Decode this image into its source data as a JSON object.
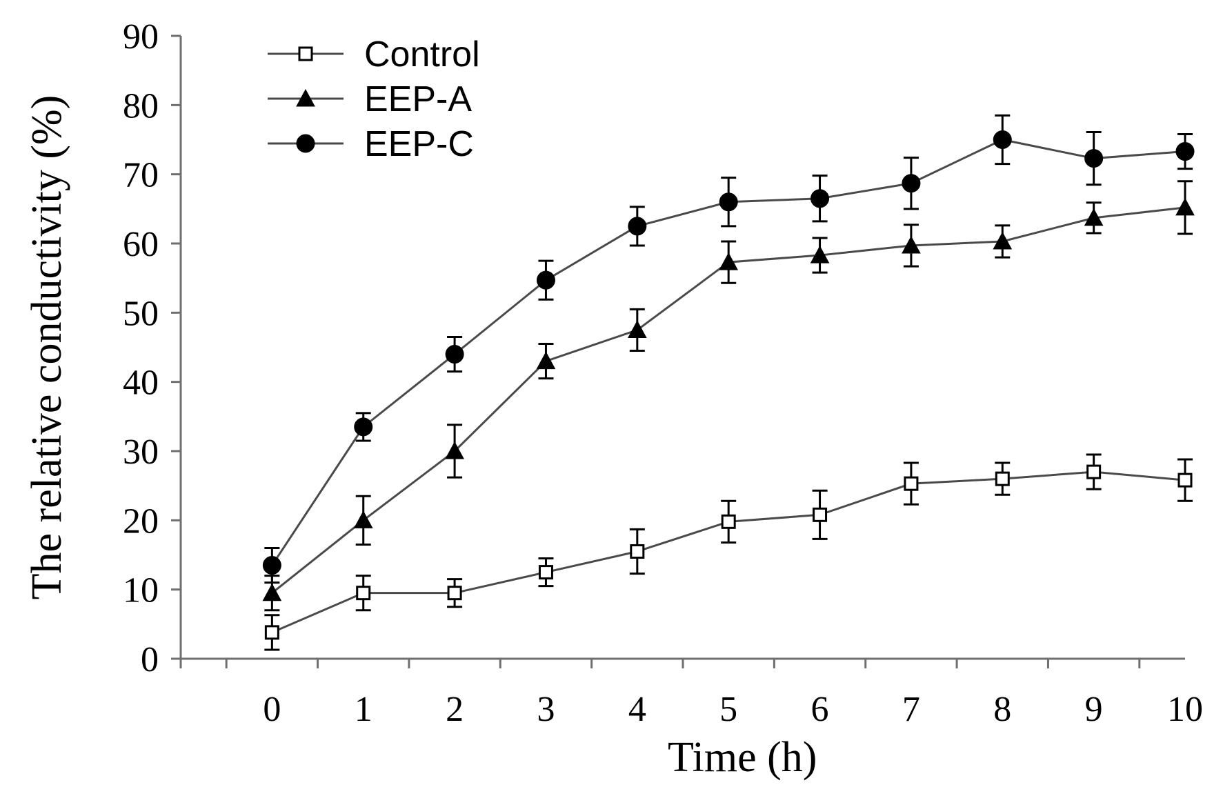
{
  "chart_data": {
    "type": "line",
    "title": "",
    "xlabel": "Time (h)",
    "ylabel": "The relative conductivity (%)",
    "x": [
      0,
      1,
      2,
      3,
      4,
      5,
      6,
      7,
      8,
      9,
      10
    ],
    "xticks": [
      "0",
      "1",
      "2",
      "3",
      "4",
      "5",
      "6",
      "7",
      "8",
      "9",
      "10"
    ],
    "yticks": [
      "0",
      "10",
      "20",
      "30",
      "40",
      "50",
      "60",
      "70",
      "80",
      "90"
    ],
    "xlim": [
      -1,
      10
    ],
    "ylim": [
      0,
      90
    ],
    "grid": false,
    "legend_position": "top-left",
    "series": [
      {
        "name": "Control",
        "marker": "open-square",
        "values": [
          3.8,
          9.5,
          9.5,
          12.5,
          15.5,
          19.8,
          20.8,
          25.3,
          26.0,
          27.0,
          25.8
        ],
        "errors": [
          2.5,
          2.5,
          2.0,
          2.0,
          3.2,
          3.0,
          3.5,
          3.0,
          2.3,
          2.5,
          3.0
        ]
      },
      {
        "name": "EEP-A",
        "marker": "filled-triangle",
        "values": [
          9.5,
          20.0,
          30.0,
          43.0,
          47.5,
          57.3,
          58.3,
          59.7,
          60.3,
          63.7,
          65.2
        ],
        "errors": [
          2.5,
          3.5,
          3.8,
          2.5,
          3.0,
          3.0,
          2.5,
          3.0,
          2.3,
          2.2,
          3.8
        ]
      },
      {
        "name": "EEP-C",
        "marker": "filled-circle",
        "values": [
          13.5,
          33.5,
          44.0,
          54.7,
          62.5,
          66.0,
          66.5,
          68.7,
          75.0,
          72.3,
          73.3
        ],
        "errors": [
          2.5,
          2.0,
          2.5,
          2.8,
          2.8,
          3.5,
          3.3,
          3.7,
          3.5,
          3.8,
          2.5
        ]
      }
    ]
  }
}
